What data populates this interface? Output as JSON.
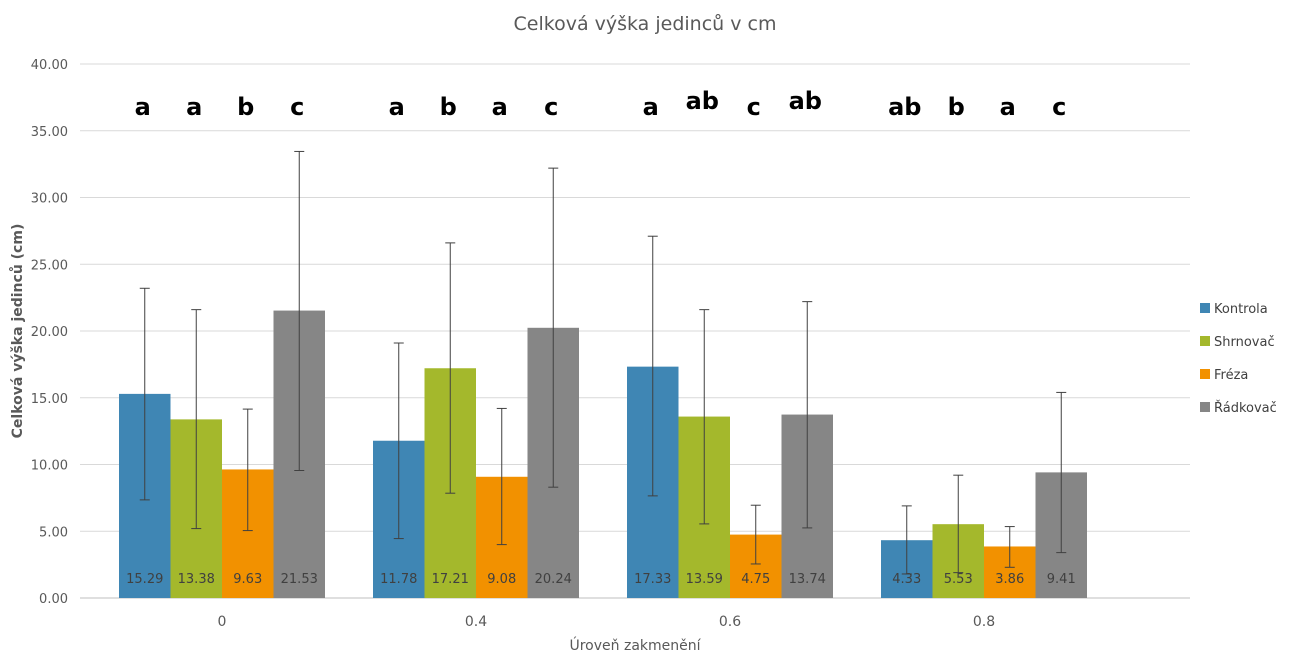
{
  "chart_data": {
    "type": "bar",
    "title": "Celková výška jedinců v cm",
    "xlabel": "Úroveň zakmenění",
    "ylabel": "Celková výška jedinců (cm)",
    "ylim": [
      0,
      40
    ],
    "yticks": [
      "0.00",
      "5.00",
      "10.00",
      "15.00",
      "20.00",
      "25.00",
      "30.00",
      "35.00",
      "40.00"
    ],
    "grid": true,
    "legend_position": "right",
    "categories": [
      "0",
      "0.4",
      "0.6",
      "0.8"
    ],
    "series": [
      {
        "name": "Kontrola",
        "color": "#3f86b4",
        "values": [
          15.29,
          11.78,
          17.33,
          4.33
        ],
        "err_low": [
          7.35,
          4.45,
          7.65,
          1.8
        ],
        "err_high": [
          23.2,
          19.1,
          27.1,
          6.9
        ]
      },
      {
        "name": "Shrnovač",
        "color": "#a4b82c",
        "values": [
          13.38,
          17.21,
          13.59,
          5.53
        ],
        "err_low": [
          5.2,
          7.85,
          5.55,
          1.9
        ],
        "err_high": [
          21.6,
          26.6,
          21.6,
          9.2
        ]
      },
      {
        "name": "Fréza",
        "color": "#f29100",
        "values": [
          9.63,
          9.08,
          4.75,
          3.86
        ],
        "err_low": [
          5.05,
          4.0,
          2.55,
          2.3
        ],
        "err_high": [
          14.15,
          14.2,
          6.95,
          5.35
        ]
      },
      {
        "name": "Řádkovač",
        "color": "#868686",
        "values": [
          21.53,
          20.24,
          13.74,
          9.41
        ],
        "err_low": [
          9.55,
          8.3,
          5.25,
          3.4
        ],
        "err_high": [
          33.45,
          32.2,
          22.2,
          15.4
        ]
      }
    ],
    "data_labels": [
      [
        "15.29",
        "13.38",
        "9.63",
        "21.53"
      ],
      [
        "11.78",
        "17.21",
        "9.08",
        "20.24"
      ],
      [
        "17.33",
        "13.59",
        "4.75",
        "13.74"
      ],
      [
        "4.33",
        "5.53",
        "3.86",
        "9.41"
      ]
    ],
    "significance_letters": [
      [
        "a",
        "a",
        "b",
        "c"
      ],
      [
        "a",
        "b",
        "a",
        "c"
      ],
      [
        "a",
        "ab",
        "c",
        "ab"
      ],
      [
        "ab",
        "b",
        "a",
        "c"
      ]
    ]
  }
}
